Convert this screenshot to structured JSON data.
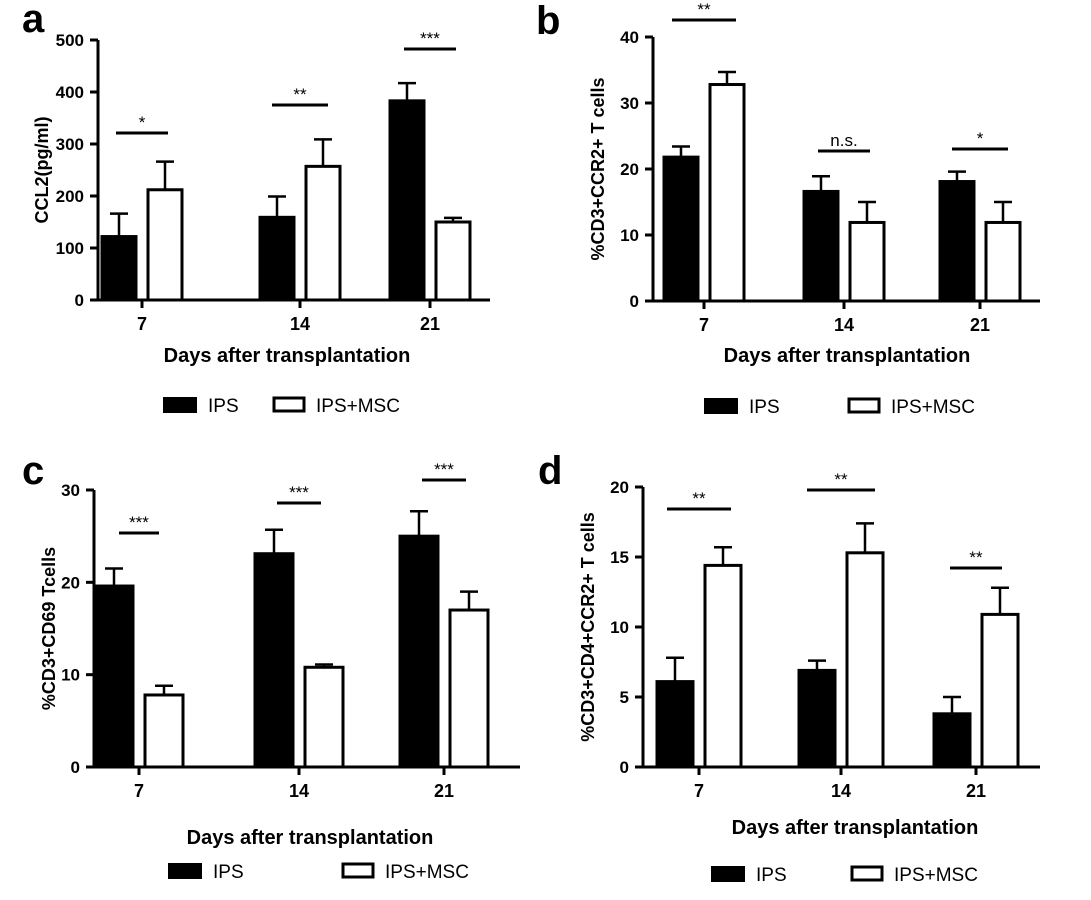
{
  "colors": {
    "ips": "#000000",
    "msc": "#ffffff",
    "axis": "#000000",
    "text": "#000000"
  },
  "chart_data": [
    {
      "panel": "a",
      "type": "bar",
      "categories": [
        "7",
        "14",
        "21"
      ],
      "series": [
        {
          "name": "IPS",
          "values": [
            122,
            159,
            383
          ],
          "errors": [
            44,
            40,
            34
          ]
        },
        {
          "name": "IPS+MSC",
          "values": [
            212,
            257,
            150
          ],
          "errors": [
            54,
            52,
            8
          ]
        }
      ],
      "significance": [
        "*",
        "**",
        "***"
      ],
      "xlabel": "Days after transplantation",
      "ylabel": "CCL2(pg/ml)",
      "ylim": [
        0,
        500
      ],
      "yticks": [
        "0",
        "100",
        "200",
        "300",
        "400",
        "500"
      ],
      "legend": [
        "IPS",
        "IPS+MSC"
      ],
      "grid": false
    },
    {
      "panel": "b",
      "type": "bar",
      "categories": [
        "7",
        "14",
        "21"
      ],
      "series": [
        {
          "name": "IPS",
          "values": [
            21.8,
            16.6,
            18.1
          ],
          "errors": [
            1.6,
            2.3,
            1.5
          ]
        },
        {
          "name": "IPS+MSC",
          "values": [
            32.8,
            11.9,
            11.9
          ],
          "errors": [
            1.9,
            3.1,
            3.1
          ]
        }
      ],
      "significance": [
        "**",
        "n.s.",
        "*"
      ],
      "xlabel": "Days after transplantation",
      "ylabel": "%CD3+CCR2+ T cells",
      "ylim": [
        0,
        40
      ],
      "yticks": [
        "0",
        "10",
        "20",
        "30",
        "40"
      ],
      "legend": [
        "IPS",
        "IPS+MSC"
      ],
      "grid": false
    },
    {
      "panel": "c",
      "type": "bar",
      "categories": [
        "7",
        "14",
        "21"
      ],
      "series": [
        {
          "name": "IPS",
          "values": [
            19.6,
            23.1,
            25.0
          ],
          "errors": [
            1.9,
            2.6,
            2.7
          ]
        },
        {
          "name": "IPS+MSC",
          "values": [
            7.8,
            10.8,
            17.0
          ],
          "errors": [
            1.0,
            0.3,
            2.0
          ]
        }
      ],
      "significance": [
        "***",
        "***",
        "***"
      ],
      "xlabel": "Days after transplantation",
      "ylabel": "%CD3+CD69 Tcells",
      "ylim": [
        0,
        30
      ],
      "yticks": [
        "0",
        "10",
        "20",
        "30"
      ],
      "legend": [
        "IPS",
        "IPS+MSC"
      ],
      "grid": false
    },
    {
      "panel": "d",
      "type": "bar",
      "categories": [
        "7",
        "14",
        "21"
      ],
      "series": [
        {
          "name": "IPS",
          "values": [
            6.1,
            6.9,
            3.8
          ],
          "errors": [
            1.7,
            0.7,
            1.2
          ]
        },
        {
          "name": "IPS+MSC",
          "values": [
            14.4,
            15.3,
            10.9
          ],
          "errors": [
            1.3,
            2.1,
            1.9
          ]
        }
      ],
      "significance": [
        "**",
        "**",
        "**"
      ],
      "xlabel": "Days after transplantation",
      "ylabel": "%CD3+CD4+CCR2+ T cells",
      "ylim": [
        0,
        20
      ],
      "yticks": [
        "0",
        "5",
        "10",
        "15",
        "20"
      ],
      "legend": [
        "IPS",
        "IPS+MSC"
      ],
      "grid": false
    }
  ]
}
